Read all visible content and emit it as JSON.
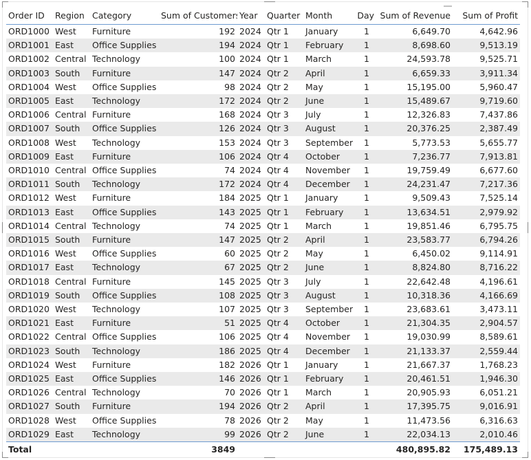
{
  "table": {
    "columns": [
      {
        "key": "order_id",
        "label": "Order ID"
      },
      {
        "key": "region",
        "label": "Region"
      },
      {
        "key": "category",
        "label": "Category"
      },
      {
        "key": "customers",
        "label": "Sum of Customers"
      },
      {
        "key": "year",
        "label": "Year"
      },
      {
        "key": "quarter",
        "label": "Quarter"
      },
      {
        "key": "month",
        "label": "Month"
      },
      {
        "key": "day",
        "label": "Day"
      },
      {
        "key": "revenue",
        "label": "Sum of Revenue"
      },
      {
        "key": "profit",
        "label": "Sum of Profit"
      }
    ],
    "rows": [
      [
        "ORD1000",
        "West",
        "Furniture",
        "192",
        "2024",
        "Qtr 1",
        "January",
        "1",
        "6,649.70",
        "4,642.96"
      ],
      [
        "ORD1001",
        "East",
        "Office Supplies",
        "194",
        "2024",
        "Qtr 1",
        "February",
        "1",
        "8,698.60",
        "9,513.19"
      ],
      [
        "ORD1002",
        "Central",
        "Technology",
        "100",
        "2024",
        "Qtr 1",
        "March",
        "1",
        "24,593.78",
        "9,525.71"
      ],
      [
        "ORD1003",
        "South",
        "Furniture",
        "147",
        "2024",
        "Qtr 2",
        "April",
        "1",
        "6,659.33",
        "3,911.34"
      ],
      [
        "ORD1004",
        "West",
        "Office Supplies",
        "98",
        "2024",
        "Qtr 2",
        "May",
        "1",
        "15,195.00",
        "5,960.47"
      ],
      [
        "ORD1005",
        "East",
        "Technology",
        "172",
        "2024",
        "Qtr 2",
        "June",
        "1",
        "15,489.67",
        "9,719.60"
      ],
      [
        "ORD1006",
        "Central",
        "Furniture",
        "168",
        "2024",
        "Qtr 3",
        "July",
        "1",
        "12,326.83",
        "7,437.86"
      ],
      [
        "ORD1007",
        "South",
        "Office Supplies",
        "126",
        "2024",
        "Qtr 3",
        "August",
        "1",
        "20,376.25",
        "2,387.49"
      ],
      [
        "ORD1008",
        "West",
        "Technology",
        "153",
        "2024",
        "Qtr 3",
        "September",
        "1",
        "5,773.53",
        "5,655.77"
      ],
      [
        "ORD1009",
        "East",
        "Furniture",
        "106",
        "2024",
        "Qtr 4",
        "October",
        "1",
        "7,236.77",
        "7,913.81"
      ],
      [
        "ORD1010",
        "Central",
        "Office Supplies",
        "74",
        "2024",
        "Qtr 4",
        "November",
        "1",
        "19,759.49",
        "6,677.60"
      ],
      [
        "ORD1011",
        "South",
        "Technology",
        "172",
        "2024",
        "Qtr 4",
        "December",
        "1",
        "24,231.47",
        "7,217.36"
      ],
      [
        "ORD1012",
        "West",
        "Furniture",
        "184",
        "2025",
        "Qtr 1",
        "January",
        "1",
        "9,509.43",
        "7,525.14"
      ],
      [
        "ORD1013",
        "East",
        "Office Supplies",
        "143",
        "2025",
        "Qtr 1",
        "February",
        "1",
        "13,634.51",
        "2,979.92"
      ],
      [
        "ORD1014",
        "Central",
        "Technology",
        "74",
        "2025",
        "Qtr 1",
        "March",
        "1",
        "19,851.46",
        "6,795.75"
      ],
      [
        "ORD1015",
        "South",
        "Furniture",
        "147",
        "2025",
        "Qtr 2",
        "April",
        "1",
        "23,583.77",
        "6,794.26"
      ],
      [
        "ORD1016",
        "West",
        "Office Supplies",
        "60",
        "2025",
        "Qtr 2",
        "May",
        "1",
        "6,450.02",
        "9,114.91"
      ],
      [
        "ORD1017",
        "East",
        "Technology",
        "67",
        "2025",
        "Qtr 2",
        "June",
        "1",
        "8,824.80",
        "8,716.22"
      ],
      [
        "ORD1018",
        "Central",
        "Furniture",
        "145",
        "2025",
        "Qtr 3",
        "July",
        "1",
        "22,642.48",
        "4,196.61"
      ],
      [
        "ORD1019",
        "South",
        "Office Supplies",
        "108",
        "2025",
        "Qtr 3",
        "August",
        "1",
        "10,318.36",
        "4,166.69"
      ],
      [
        "ORD1020",
        "West",
        "Technology",
        "107",
        "2025",
        "Qtr 3",
        "September",
        "1",
        "23,683.61",
        "3,473.11"
      ],
      [
        "ORD1021",
        "East",
        "Furniture",
        "51",
        "2025",
        "Qtr 4",
        "October",
        "1",
        "21,304.35",
        "2,904.57"
      ],
      [
        "ORD1022",
        "Central",
        "Office Supplies",
        "106",
        "2025",
        "Qtr 4",
        "November",
        "1",
        "19,030.99",
        "8,589.61"
      ],
      [
        "ORD1023",
        "South",
        "Technology",
        "186",
        "2025",
        "Qtr 4",
        "December",
        "1",
        "21,133.37",
        "2,559.44"
      ],
      [
        "ORD1024",
        "West",
        "Furniture",
        "182",
        "2026",
        "Qtr 1",
        "January",
        "1",
        "21,667.37",
        "1,768.23"
      ],
      [
        "ORD1025",
        "East",
        "Office Supplies",
        "146",
        "2026",
        "Qtr 1",
        "February",
        "1",
        "20,461.51",
        "1,946.30"
      ],
      [
        "ORD1026",
        "Central",
        "Technology",
        "70",
        "2026",
        "Qtr 1",
        "March",
        "1",
        "20,905.93",
        "6,051.21"
      ],
      [
        "ORD1027",
        "South",
        "Furniture",
        "194",
        "2026",
        "Qtr 2",
        "April",
        "1",
        "17,395.75",
        "9,016.91"
      ],
      [
        "ORD1028",
        "West",
        "Office Supplies",
        "78",
        "2026",
        "Qtr 2",
        "May",
        "1",
        "11,473.56",
        "6,316.63"
      ],
      [
        "ORD1029",
        "East",
        "Technology",
        "99",
        "2026",
        "Qtr 2",
        "June",
        "1",
        "22,034.13",
        "2,010.46"
      ]
    ],
    "total": {
      "label": "Total",
      "customers": "3849",
      "revenue": "480,895.82",
      "profit": "175,489.13"
    }
  },
  "icons": {
    "sort": "sort-indicator-icon"
  },
  "colors": {
    "header_rule": "#6e9bd0",
    "band": "#eaeaea",
    "text": "#252423"
  }
}
